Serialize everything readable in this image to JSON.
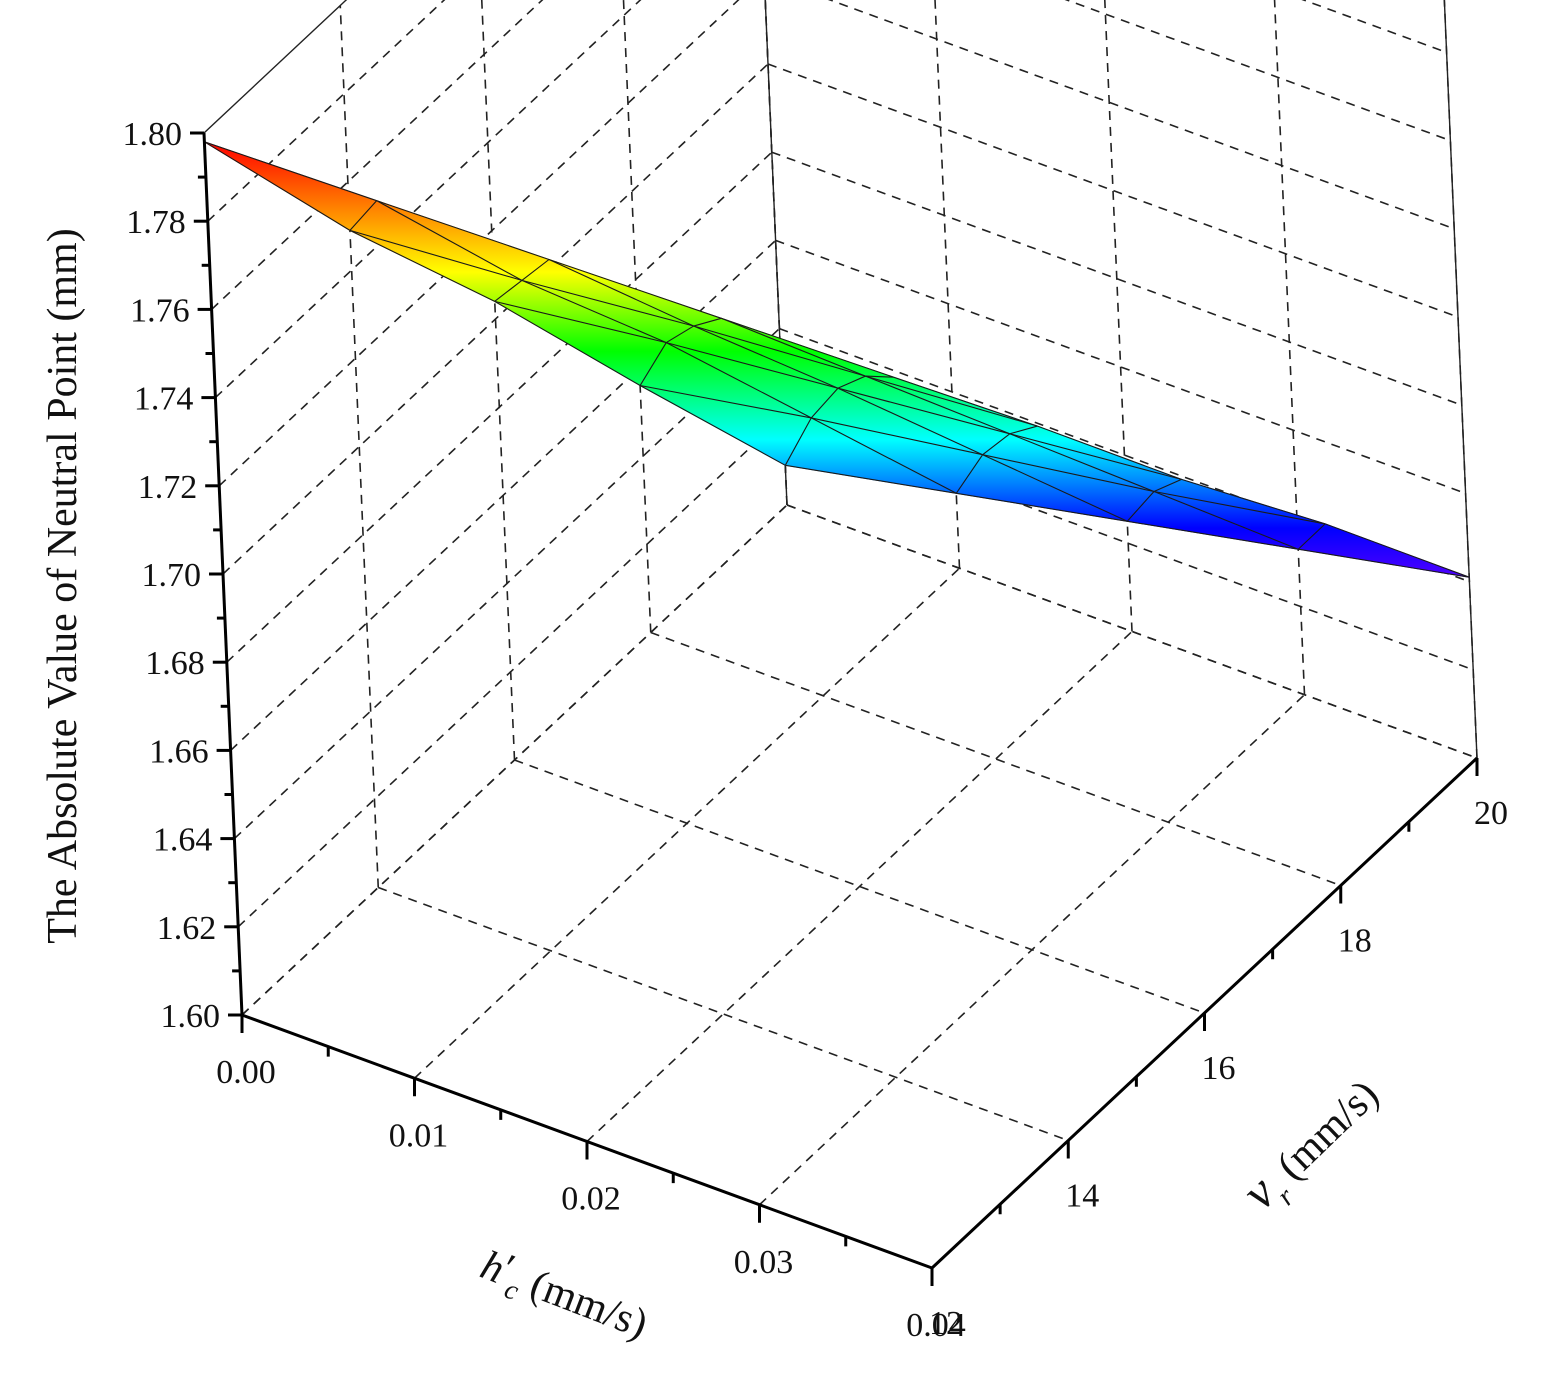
{
  "chart_data": {
    "type": "surface",
    "title": "",
    "zlabel": "The Absolute Value of Neutral Point (mm)",
    "xlabel_main": "h",
    "xlabel_prime": "′",
    "xlabel_sub": "c",
    "xlabel_unit": " (mm/s)",
    "ylabel_main": "v",
    "ylabel_sub": "r",
    "ylabel_unit": " (mm/s)",
    "x_ticks": [
      "0.00",
      "0.01",
      "0.02",
      "0.03",
      "0.04"
    ],
    "y_ticks": [
      "12",
      "14",
      "16",
      "18",
      "20"
    ],
    "z_ticks": [
      "1.60",
      "1.62",
      "1.64",
      "1.66",
      "1.68",
      "1.70",
      "1.72",
      "1.74",
      "1.76",
      "1.78",
      "1.80"
    ],
    "xlim": [
      0.0,
      0.04
    ],
    "ylim": [
      12,
      20
    ],
    "zlim": [
      1.6,
      1.8
    ],
    "x": [
      0.0,
      0.01,
      0.02,
      0.03,
      0.04
    ],
    "y": [
      12,
      14,
      16,
      18,
      20
    ],
    "z": [
      [
        1.798,
        1.799,
        1.8,
        1.801,
        1.802
      ],
      [
        1.749,
        1.752,
        1.756,
        1.759,
        1.762
      ],
      [
        1.704,
        1.709,
        1.713,
        1.717,
        1.721
      ],
      [
        1.656,
        1.663,
        1.669,
        1.675,
        1.682
      ],
      [
        1.609,
        1.617,
        1.625,
        1.633,
        1.641
      ]
    ],
    "grid": true,
    "colormap": [
      "#7f00ff",
      "#0000ff",
      "#00ffff",
      "#00ff00",
      "#ffff00",
      "#ff8000",
      "#ff0000"
    ]
  }
}
